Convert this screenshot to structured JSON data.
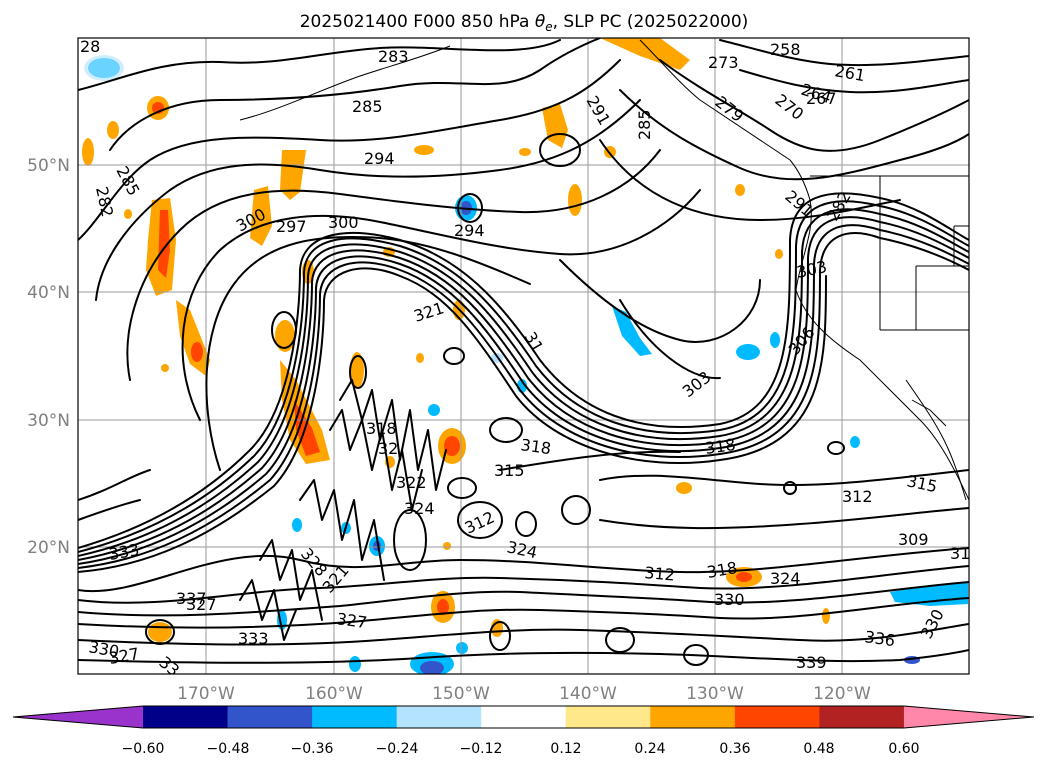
{
  "title_text": "2025021400 F000 850 hPa θe, SLP PC (2025022000)",
  "title": {
    "prefix": "2025021400 F000 850 hPa ",
    "theta_symbol": "θ",
    "theta_sub": "e",
    "suffix": ", SLP PC (2025022000)"
  },
  "lat_labels": [
    "50°N",
    "40°N",
    "30°N",
    "20°N"
  ],
  "lon_labels": [
    "170°W",
    "160°W",
    "150°W",
    "140°W",
    "130°W",
    "120°W"
  ],
  "colorbar": {
    "tick_labels": [
      "−0.60",
      "−0.48",
      "−0.36",
      "−0.24",
      "−0.12",
      "0.12",
      "0.24",
      "0.36",
      "0.48",
      "0.60"
    ],
    "colors": [
      "#9933cc",
      "#000088",
      "#3355cc",
      "#00bbff",
      "#b3e3ff",
      "#ffffff",
      "#ffe88a",
      "#ffa500",
      "#ff4500",
      "#b22222",
      "#ff88aa"
    ],
    "extend": "both"
  },
  "contour_labels": [
    "28",
    "283",
    "285",
    "282",
    "285",
    "294",
    "291",
    "285",
    "258",
    "273",
    "261",
    "264",
    "279",
    "270",
    "267",
    "291",
    "300",
    "297",
    "300",
    "294",
    "282",
    "303",
    "321",
    "303",
    "306",
    "31",
    "303",
    "318",
    "32",
    "321",
    "318",
    "322",
    "324",
    "315",
    "312",
    "312",
    "315",
    "318",
    "309",
    "31",
    "324",
    "321",
    "327",
    "328",
    "312",
    "318",
    "324",
    "330",
    "336",
    "330",
    "337",
    "327",
    "330",
    "327",
    "333",
    "339",
    "333",
    "33"
  ],
  "colors": {
    "contour": "#000000",
    "gridline": "#9a9a9a",
    "axis_label": "#808080"
  }
}
